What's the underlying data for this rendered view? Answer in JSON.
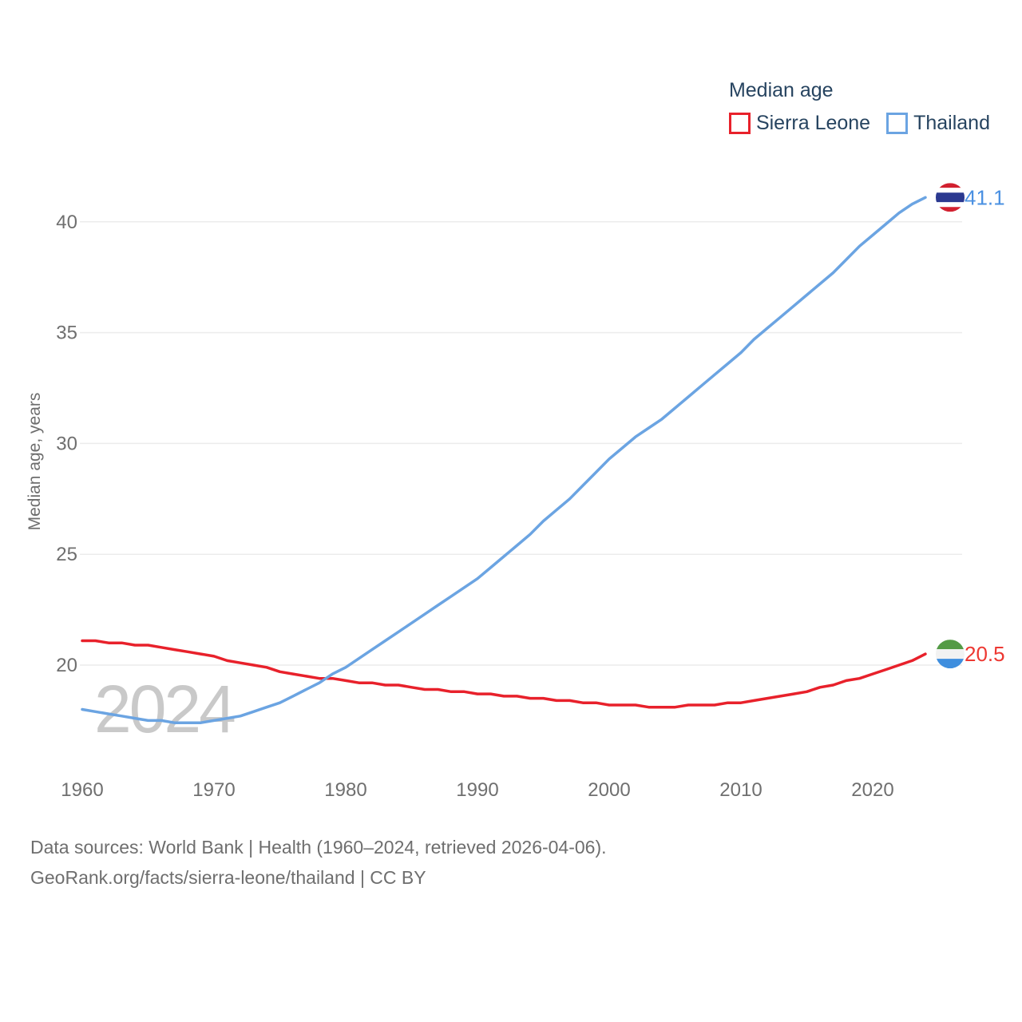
{
  "legend": {
    "title": "Median age",
    "items": [
      {
        "label": "Sierra Leone",
        "color": "#e8212b"
      },
      {
        "label": "Thailand",
        "color": "#6ba4e2"
      }
    ]
  },
  "watermark": "2024",
  "y_axis_title": "Median age, years",
  "footer": {
    "line1": "Data sources: World Bank | Health (1960–2024, retrieved 2026-04-06).",
    "line2": "GeoRank.org/facts/sierra-leone/thailand | CC BY"
  },
  "chart_data": {
    "type": "line",
    "title": "Median age",
    "xlabel": "",
    "ylabel": "Median age, years",
    "grid": "horizontal",
    "legend_position": "top-right",
    "xlim": [
      1960,
      2024
    ],
    "ylim": [
      17,
      42.5
    ],
    "xticks": [
      1960,
      1970,
      1980,
      1990,
      2000,
      2010,
      2020
    ],
    "yticks": [
      20,
      25,
      30,
      35,
      40
    ],
    "x": [
      1960,
      1961,
      1962,
      1963,
      1964,
      1965,
      1966,
      1967,
      1968,
      1969,
      1970,
      1971,
      1972,
      1973,
      1974,
      1975,
      1976,
      1977,
      1978,
      1979,
      1980,
      1981,
      1982,
      1983,
      1984,
      1985,
      1986,
      1987,
      1988,
      1989,
      1990,
      1991,
      1992,
      1993,
      1994,
      1995,
      1996,
      1997,
      1998,
      1999,
      2000,
      2001,
      2002,
      2003,
      2004,
      2005,
      2006,
      2007,
      2008,
      2009,
      2010,
      2011,
      2012,
      2013,
      2014,
      2015,
      2016,
      2017,
      2018,
      2019,
      2020,
      2021,
      2022,
      2023,
      2024
    ],
    "series": [
      {
        "name": "Sierra Leone",
        "color": "#e8212b",
        "end_label": "20.5",
        "end_label_color": "#ed3832",
        "flag_name": "sierra-leone-flag",
        "flag_stripes": [
          {
            "color": "#549b46",
            "weight": 1
          },
          {
            "color": "#f2f2f2",
            "weight": 1
          },
          {
            "color": "#3e8ede",
            "weight": 1
          }
        ],
        "values": [
          21.1,
          21.1,
          21.0,
          21.0,
          20.9,
          20.9,
          20.8,
          20.7,
          20.6,
          20.5,
          20.4,
          20.2,
          20.1,
          20.0,
          19.9,
          19.7,
          19.6,
          19.5,
          19.4,
          19.4,
          19.3,
          19.2,
          19.2,
          19.1,
          19.1,
          19.0,
          18.9,
          18.9,
          18.8,
          18.8,
          18.7,
          18.7,
          18.6,
          18.6,
          18.5,
          18.5,
          18.4,
          18.4,
          18.3,
          18.3,
          18.2,
          18.2,
          18.2,
          18.1,
          18.1,
          18.1,
          18.2,
          18.2,
          18.2,
          18.3,
          18.3,
          18.4,
          18.5,
          18.6,
          18.7,
          18.8,
          19.0,
          19.1,
          19.3,
          19.4,
          19.6,
          19.8,
          20.0,
          20.2,
          20.5
        ]
      },
      {
        "name": "Thailand",
        "color": "#6ba4e2",
        "end_label": "41.1",
        "end_label_color": "#4a90e2",
        "flag_name": "thailand-flag",
        "flag_stripes": [
          {
            "color": "#d2202f",
            "weight": 1
          },
          {
            "color": "#ffffff",
            "weight": 1
          },
          {
            "color": "#2b3990",
            "weight": 2
          },
          {
            "color": "#ffffff",
            "weight": 1
          },
          {
            "color": "#d2202f",
            "weight": 1
          }
        ],
        "values": [
          18.0,
          17.9,
          17.8,
          17.7,
          17.6,
          17.5,
          17.5,
          17.4,
          17.4,
          17.4,
          17.5,
          17.6,
          17.7,
          17.9,
          18.1,
          18.3,
          18.6,
          18.9,
          19.2,
          19.6,
          19.9,
          20.3,
          20.7,
          21.1,
          21.5,
          21.9,
          22.3,
          22.7,
          23.1,
          23.5,
          23.9,
          24.4,
          24.9,
          25.4,
          25.9,
          26.5,
          27.0,
          27.5,
          28.1,
          28.7,
          29.3,
          29.8,
          30.3,
          30.7,
          31.1,
          31.6,
          32.1,
          32.6,
          33.1,
          33.6,
          34.1,
          34.7,
          35.2,
          35.7,
          36.2,
          36.7,
          37.2,
          37.7,
          38.3,
          38.9,
          39.4,
          39.9,
          40.4,
          40.8,
          41.1
        ]
      }
    ]
  }
}
